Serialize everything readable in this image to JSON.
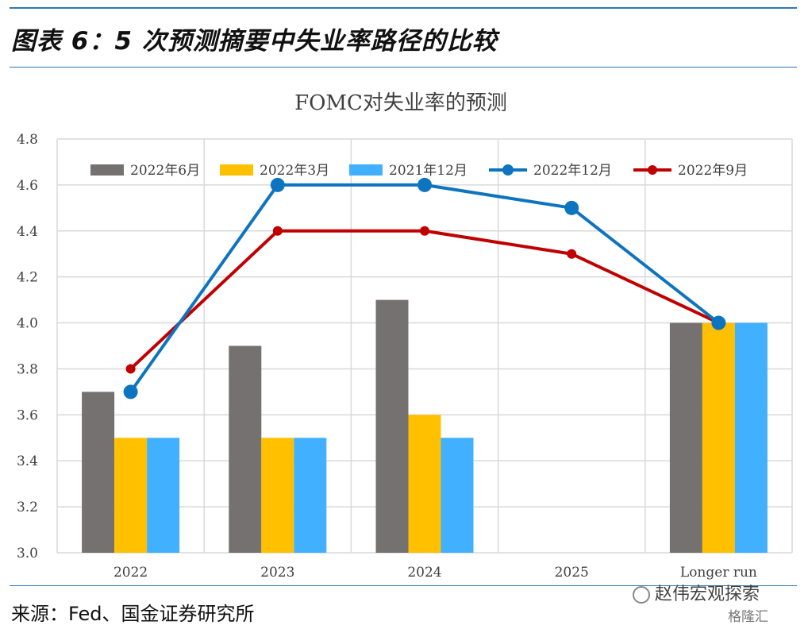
{
  "header": {
    "title": "图表 6：5 次预测摘要中失业率路径的比较"
  },
  "footer": {
    "source": "来源：Fed、国金证券研究所",
    "watermark": "赵伟宏观探索",
    "watermark2": "格隆汇"
  },
  "chart_data": {
    "type": "bar",
    "title": "FOMC对失业率的预测",
    "categories": [
      "2022",
      "2023",
      "2024",
      "2025",
      "Longer run"
    ],
    "ylim": [
      3.0,
      4.8
    ],
    "yticks": [
      3.0,
      3.2,
      3.4,
      3.6,
      3.8,
      4.0,
      4.2,
      4.4,
      4.6,
      4.8
    ],
    "grid": true,
    "legend_position": "top",
    "bar_series": [
      {
        "name": "2022年6月",
        "color": "#767171",
        "values": [
          3.7,
          3.9,
          4.1,
          null,
          4.0
        ]
      },
      {
        "name": "2022年3月",
        "color": "#ffc000",
        "values": [
          3.5,
          3.5,
          3.6,
          null,
          4.0
        ]
      },
      {
        "name": "2021年12月",
        "color": "#41b0ff",
        "values": [
          3.5,
          3.5,
          3.5,
          null,
          4.0
        ]
      }
    ],
    "line_series": [
      {
        "name": "2022年12月",
        "color": "#0d74bf",
        "values": [
          3.7,
          4.6,
          4.6,
          4.5,
          4.0
        ]
      },
      {
        "name": "2022年9月",
        "color": "#c00000",
        "values": [
          3.8,
          4.4,
          4.4,
          4.3,
          4.0
        ]
      }
    ]
  }
}
